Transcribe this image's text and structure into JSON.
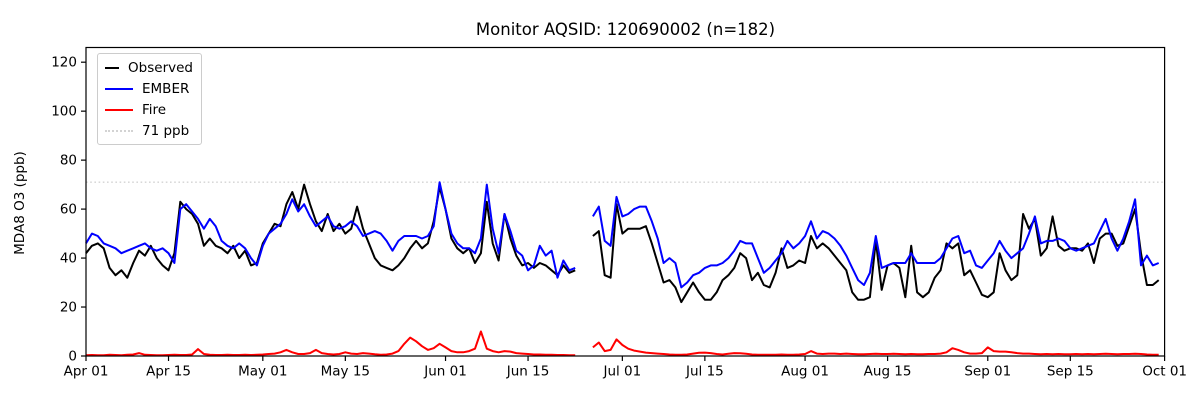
{
  "chart_data": {
    "type": "line",
    "title": "Monitor AQSID: 120690002 (n=182)",
    "ylabel": "MDA8 O3 (ppb)",
    "xlabel": "",
    "x_unit": "daily values, index 0 = Apr 01",
    "x_tick_labels": [
      "Apr 01",
      "Apr 15",
      "May 01",
      "May 15",
      "Jun 01",
      "Jun 15",
      "Jul 01",
      "Jul 15",
      "Aug 01",
      "Aug 15",
      "Sep 01",
      "Sep 15",
      "Oct 01"
    ],
    "x_tick_days": [
      0,
      14,
      30,
      44,
      61,
      75,
      91,
      105,
      122,
      136,
      153,
      167,
      183
    ],
    "x_range_days": 183,
    "y_ticks": [
      0,
      20,
      40,
      60,
      80,
      100,
      120
    ],
    "ylim": [
      0,
      126
    ],
    "grid": false,
    "legend_position": "upper left",
    "threshold": {
      "label": "71 ppb",
      "value": 71,
      "color": "#d3d3d3",
      "style": "dotted"
    },
    "series": [
      {
        "name": "Observed",
        "color": "#000000",
        "values": [
          42,
          45,
          46,
          44,
          36,
          33,
          35,
          32,
          38,
          43,
          41,
          45,
          40,
          37,
          35,
          42,
          63,
          60,
          58,
          54,
          45,
          48,
          45,
          44,
          42,
          45,
          40,
          43,
          37,
          38,
          46,
          50,
          54,
          53,
          62,
          67,
          60,
          70,
          62,
          55,
          51,
          58,
          51,
          54,
          50,
          52,
          61,
          52,
          46,
          40,
          37,
          36,
          35,
          37,
          40,
          44,
          47,
          44,
          46,
          55,
          69,
          60,
          48,
          44,
          42,
          44,
          38,
          42,
          63,
          46,
          39,
          58,
          48,
          41,
          37,
          38,
          36,
          38,
          37,
          35,
          33,
          37,
          34,
          35,
          null,
          null,
          49,
          51,
          33,
          32,
          62,
          50,
          52,
          52,
          52,
          53,
          46,
          38,
          30,
          31,
          28,
          22,
          26,
          30,
          26,
          23,
          23,
          26,
          31,
          33,
          36,
          42,
          40,
          31,
          34,
          29,
          28,
          34,
          44,
          36,
          37,
          39,
          38,
          49,
          44,
          46,
          44,
          41,
          38,
          35,
          26,
          23,
          23,
          24,
          47,
          27,
          37,
          38,
          36,
          24,
          45,
          26,
          24,
          26,
          32,
          35,
          46,
          44,
          46,
          33,
          35,
          30,
          25,
          24,
          26,
          42,
          35,
          31,
          33,
          58,
          52,
          56,
          41,
          44,
          57,
          45,
          43,
          44,
          44,
          43,
          46,
          38,
          48,
          50,
          50,
          45,
          46,
          53,
          60,
          42,
          29,
          29,
          31
        ]
      },
      {
        "name": "EMBER",
        "color": "#0000ff",
        "values": [
          46,
          50,
          49,
          46,
          45,
          44,
          42,
          43,
          44,
          45,
          46,
          44,
          43,
          44,
          42,
          38,
          60,
          62,
          59,
          56,
          52,
          56,
          53,
          47,
          45,
          44,
          46,
          44,
          40,
          37,
          45,
          50,
          52,
          54,
          58,
          64,
          59,
          62,
          57,
          53,
          55,
          57,
          53,
          52,
          53,
          55,
          53,
          49,
          50,
          51,
          50,
          47,
          43,
          47,
          49,
          49,
          49,
          48,
          49,
          53,
          71,
          60,
          50,
          46,
          44,
          44,
          42,
          48,
          70,
          52,
          42,
          58,
          51,
          43,
          41,
          35,
          37,
          45,
          41,
          43,
          32,
          39,
          35,
          36,
          null,
          null,
          57,
          61,
          47,
          45,
          65,
          57,
          58,
          60,
          61,
          61,
          55,
          48,
          38,
          40,
          38,
          28,
          30,
          33,
          34,
          36,
          37,
          37,
          38,
          40,
          43,
          47,
          46,
          46,
          40,
          34,
          36,
          39,
          42,
          47,
          44,
          46,
          49,
          55,
          48,
          51,
          50,
          48,
          45,
          41,
          36,
          31,
          29,
          34,
          49,
          36,
          37,
          38,
          38,
          38,
          42,
          38,
          38,
          38,
          38,
          40,
          44,
          48,
          49,
          42,
          43,
          37,
          36,
          39,
          42,
          47,
          43,
          40,
          42,
          44,
          50,
          57,
          46,
          47,
          47,
          48,
          47,
          44,
          43,
          44,
          45,
          46,
          51,
          56,
          48,
          43,
          48,
          55,
          64,
          37,
          41,
          37,
          38
        ]
      },
      {
        "name": "Fire",
        "color": "#ff0000",
        "values": [
          0.3,
          0.4,
          0.3,
          0.3,
          0.5,
          0.4,
          0.3,
          0.5,
          0.6,
          1.2,
          0.5,
          0.4,
          0.3,
          0.3,
          0.4,
          0.5,
          0.4,
          0.4,
          0.6,
          2.8,
          0.8,
          0.5,
          0.4,
          0.4,
          0.5,
          0.4,
          0.4,
          0.5,
          0.4,
          0.5,
          0.6,
          0.8,
          1.0,
          1.5,
          2.5,
          1.5,
          0.8,
          0.8,
          1.2,
          2.5,
          1.2,
          0.8,
          0.6,
          0.8,
          1.5,
          1.0,
          0.8,
          1.2,
          1.0,
          0.7,
          0.5,
          0.6,
          1.0,
          2.0,
          5.0,
          7.5,
          6.0,
          4.0,
          2.5,
          3.2,
          5.0,
          3.5,
          2.0,
          1.5,
          1.5,
          2.0,
          3.0,
          10.0,
          3.0,
          2.0,
          1.5,
          2.0,
          1.8,
          1.2,
          1.0,
          0.8,
          0.6,
          0.6,
          0.5,
          0.5,
          0.4,
          0.4,
          0.3,
          0.3,
          null,
          null,
          3.5,
          5.5,
          2.0,
          2.5,
          6.8,
          4.5,
          3.0,
          2.2,
          1.8,
          1.4,
          1.2,
          1.0,
          0.8,
          0.6,
          0.5,
          0.5,
          0.6,
          1.0,
          1.3,
          1.4,
          1.2,
          0.8,
          0.6,
          0.9,
          1.2,
          1.1,
          0.9,
          0.6,
          0.5,
          0.5,
          0.5,
          0.5,
          0.6,
          0.5,
          0.5,
          0.6,
          0.8,
          2.0,
          1.0,
          0.8,
          1.0,
          1.0,
          0.8,
          1.0,
          0.8,
          0.7,
          0.7,
          0.8,
          0.9,
          0.8,
          0.8,
          0.9,
          0.8,
          0.7,
          0.8,
          0.7,
          0.7,
          0.8,
          0.8,
          1.0,
          1.5,
          3.2,
          2.5,
          1.5,
          1.0,
          1.0,
          1.2,
          3.5,
          2.0,
          1.8,
          1.8,
          1.5,
          1.2,
          1.0,
          1.0,
          0.8,
          0.7,
          0.8,
          0.7,
          0.8,
          0.7,
          0.7,
          0.8,
          0.7,
          0.8,
          0.7,
          0.8,
          0.9,
          0.8,
          0.7,
          0.8,
          0.8,
          0.9,
          0.8,
          0.6,
          0.5,
          0.5
        ]
      }
    ],
    "colors": {
      "observed": "#000000",
      "ember": "#0000ff",
      "fire": "#ff0000",
      "threshold": "#d3d3d3",
      "axes": "#000000",
      "background": "#ffffff"
    }
  }
}
